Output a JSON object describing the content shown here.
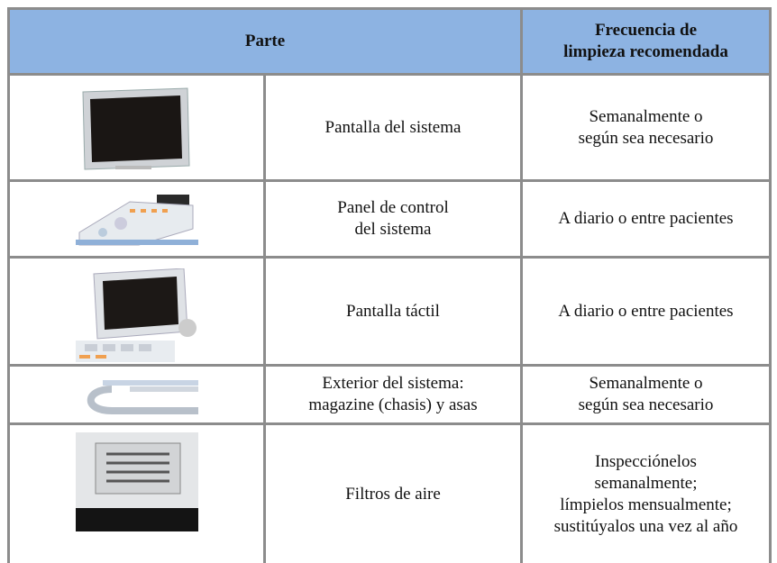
{
  "table": {
    "header": [
      "Parte",
      [
        "Frecuencia de",
        "limpieza recomendada"
      ]
    ],
    "rows": [
      {
        "part": [
          "Pantalla del sistema"
        ],
        "frequency": [
          "Semanalmente o",
          "según sea necesario"
        ]
      },
      {
        "part": [
          "Panel de control",
          "del sistema"
        ],
        "frequency": [
          "A diario o entre pacientes"
        ]
      },
      {
        "part": [
          "Pantalla táctil"
        ],
        "frequency": [
          "A diario o entre pacientes"
        ]
      },
      {
        "part": [
          "Exterior del sistema:",
          "magazine (chasis) y asas"
        ],
        "frequency": [
          "Semanalmente o",
          "según sea necesario"
        ]
      },
      {
        "part": [
          "Filtros de aire"
        ],
        "frequency": [
          "Inspecciónelos",
          "semanalmente;",
          "límpielos mensualmente;",
          "sustitúyalos una vez al año"
        ]
      }
    ]
  }
}
